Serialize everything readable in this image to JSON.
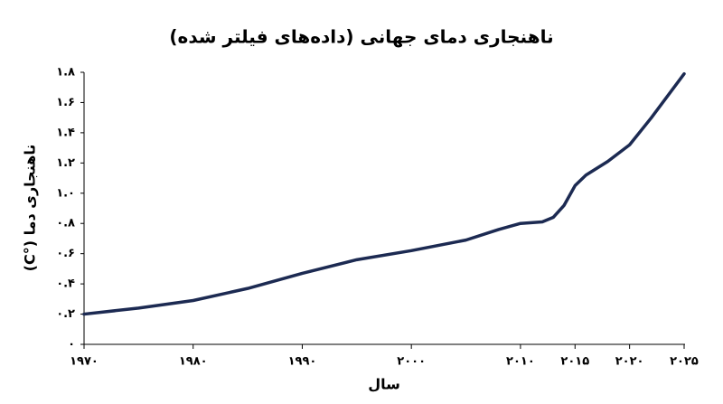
{
  "chart_data": {
    "type": "line",
    "title": "ناهنجاری دمای جهانی (داده‌های فیلتر شده)",
    "x_label": "سال",
    "y_label": "ناهنجاری دما (°C)",
    "x": [
      1970,
      1975,
      1980,
      1985,
      1990,
      1995,
      2000,
      2005,
      2008,
      2010,
      2012,
      2013,
      2014,
      2015,
      2016,
      2018,
      2020,
      2022,
      2025
    ],
    "series": [
      {
        "name": "ناهنجاری دما",
        "color": "#1c2a52",
        "values": [
          0.2,
          0.24,
          0.29,
          0.37,
          0.47,
          0.56,
          0.62,
          0.69,
          0.76,
          0.8,
          0.81,
          0.84,
          0.92,
          1.05,
          1.12,
          1.21,
          1.32,
          1.5,
          1.79
        ]
      }
    ],
    "xlim": [
      1970,
      2025
    ],
    "xticks": [
      {
        "value": 1970,
        "label": "۱۹۷۰"
      },
      {
        "value": 1980,
        "label": "۱۹۸۰"
      },
      {
        "value": 1990,
        "label": "۱۹۹۰"
      },
      {
        "value": 2000,
        "label": "۲۰۰۰"
      },
      {
        "value": 2010,
        "label": "۲۰۱۰"
      },
      {
        "value": 2015,
        "label": "۲۰۱۵"
      },
      {
        "value": 2020,
        "label": "۲۰۲۰"
      },
      {
        "value": 2025,
        "label": "۲۰۲۵"
      }
    ],
    "ylim": [
      0,
      1.8
    ],
    "yticks": [
      {
        "value": 0,
        "label": "۰"
      },
      {
        "value": 0.2,
        "label": "۰.۲"
      },
      {
        "value": 0.4,
        "label": "۰.۴"
      },
      {
        "value": 0.6,
        "label": "۰.۶"
      },
      {
        "value": 0.8,
        "label": "۰.۸"
      },
      {
        "value": 1.0,
        "label": "۱.۰"
      },
      {
        "value": 1.2,
        "label": "۱.۲"
      },
      {
        "value": 1.4,
        "label": "۱.۴"
      },
      {
        "value": 1.6,
        "label": "۱.۶"
      },
      {
        "value": 1.8,
        "label": "۱.۸"
      }
    ],
    "grid": false
  }
}
